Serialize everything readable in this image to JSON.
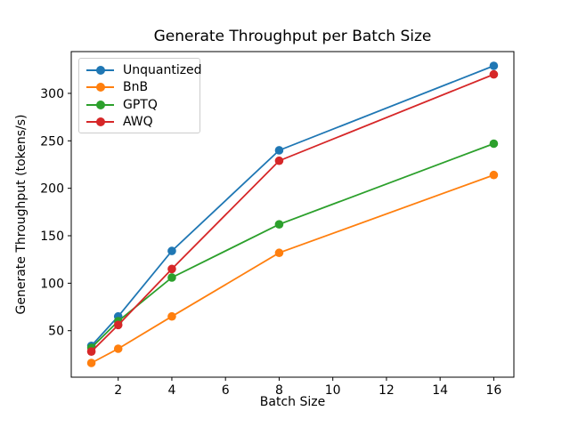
{
  "chart_data": {
    "type": "line",
    "title": "Generate Throughput per Batch Size",
    "xlabel": "Batch Size",
    "ylabel": "Generate Throughput (tokens/s)",
    "x": [
      1,
      2,
      4,
      8,
      16
    ],
    "series": [
      {
        "name": "Unquantized",
        "color": "#1f77b4",
        "values": [
          34,
          65,
          134,
          240,
          329
        ]
      },
      {
        "name": "BnB",
        "color": "#ff7f0e",
        "values": [
          16,
          31,
          65,
          132,
          214
        ]
      },
      {
        "name": "GPTQ",
        "color": "#2ca02c",
        "values": [
          32,
          60,
          106,
          162,
          247
        ]
      },
      {
        "name": "AWQ",
        "color": "#d62728",
        "values": [
          28,
          56,
          115,
          229,
          320
        ]
      }
    ],
    "xticks": [
      2,
      4,
      6,
      8,
      10,
      12,
      14,
      16
    ],
    "yticks": [
      50,
      100,
      150,
      200,
      250,
      300
    ],
    "xlim": [
      0.25,
      16.75
    ],
    "ylim": [
      1,
      344
    ],
    "grid": false,
    "legend_position": "upper left",
    "marker": "o",
    "axis_color": "#000000",
    "background_color": "#ffffff"
  }
}
